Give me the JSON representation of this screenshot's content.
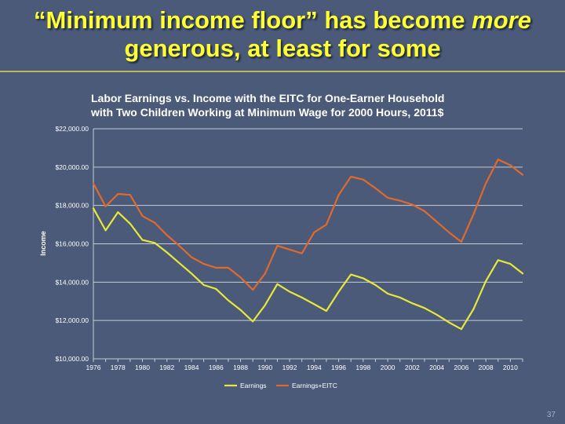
{
  "slide": {
    "title_part1": "“Minimum income floor” has become ",
    "title_emph": "more",
    "title_part2": " generous, at least for some",
    "page_number": "37"
  },
  "colors": {
    "background": "#4a5a78",
    "title": "#ffff33",
    "earnings": "#e8e83a",
    "earnings_eitc": "#e06a2c",
    "grid": "#c8ccd6"
  },
  "chart_data": {
    "type": "line",
    "title_line1": "Labor Earnings vs. Income with the EITC for One-Earner Household",
    "title_line2": "with Two Children Working at Minimum Wage for 2000 Hours, 2011$",
    "xlabel": "",
    "ylabel": "Income",
    "ylim": [
      10000,
      22000
    ],
    "xlim": [
      1976,
      2011
    ],
    "yticks": [
      10000,
      12000,
      14000,
      16000,
      18000,
      20000,
      22000
    ],
    "ytick_labels": [
      "$10,000.00",
      "$12,000.00",
      "$14,000.00",
      "$16,000.00",
      "$18,000.00",
      "$20,000.00",
      "$22,000.00"
    ],
    "xticks": [
      1976,
      1978,
      1980,
      1982,
      1984,
      1986,
      1988,
      1990,
      1992,
      1994,
      1996,
      1998,
      2000,
      2002,
      2004,
      2006,
      2008,
      2010
    ],
    "xtick_labels": [
      "1976",
      "1978",
      "1980",
      "1982",
      "1984",
      "1986",
      "1988",
      "1990",
      "1992",
      "1994",
      "1996",
      "1998",
      "2000",
      "2002",
      "2004",
      "2006",
      "2008",
      "2010"
    ],
    "grid": "horizontal",
    "legend_position": "bottom",
    "x": [
      1976,
      1977,
      1978,
      1979,
      1980,
      1981,
      1982,
      1983,
      1984,
      1985,
      1986,
      1987,
      1988,
      1989,
      1990,
      1991,
      1992,
      1993,
      1994,
      1995,
      1996,
      1997,
      1998,
      1999,
      2000,
      2001,
      2002,
      2003,
      2004,
      2005,
      2006,
      2007,
      2008,
      2009,
      2010,
      2011
    ],
    "series": [
      {
        "name": "Earnings",
        "color": "#e8e83a",
        "values": [
          17850,
          16700,
          17650,
          17050,
          16200,
          16050,
          15550,
          15000,
          14450,
          13850,
          13650,
          13050,
          12550,
          11950,
          12800,
          13900,
          13500,
          13200,
          12850,
          12500,
          13500,
          14400,
          14200,
          13850,
          13400,
          13200,
          12900,
          12650,
          12300,
          11900,
          11550,
          12600,
          14050,
          15150,
          14950,
          14450
        ]
      },
      {
        "name": "Earnings+EITC",
        "color": "#e06a2c",
        "values": [
          19150,
          17950,
          18600,
          18550,
          17450,
          17100,
          16450,
          15900,
          15300,
          14950,
          14750,
          14750,
          14250,
          13600,
          14450,
          15900,
          15700,
          15500,
          16600,
          17000,
          18550,
          19500,
          19350,
          18900,
          18400,
          18250,
          18050,
          17700,
          17150,
          16600,
          16100,
          17550,
          19150,
          20400,
          20100,
          19600
        ]
      }
    ]
  }
}
